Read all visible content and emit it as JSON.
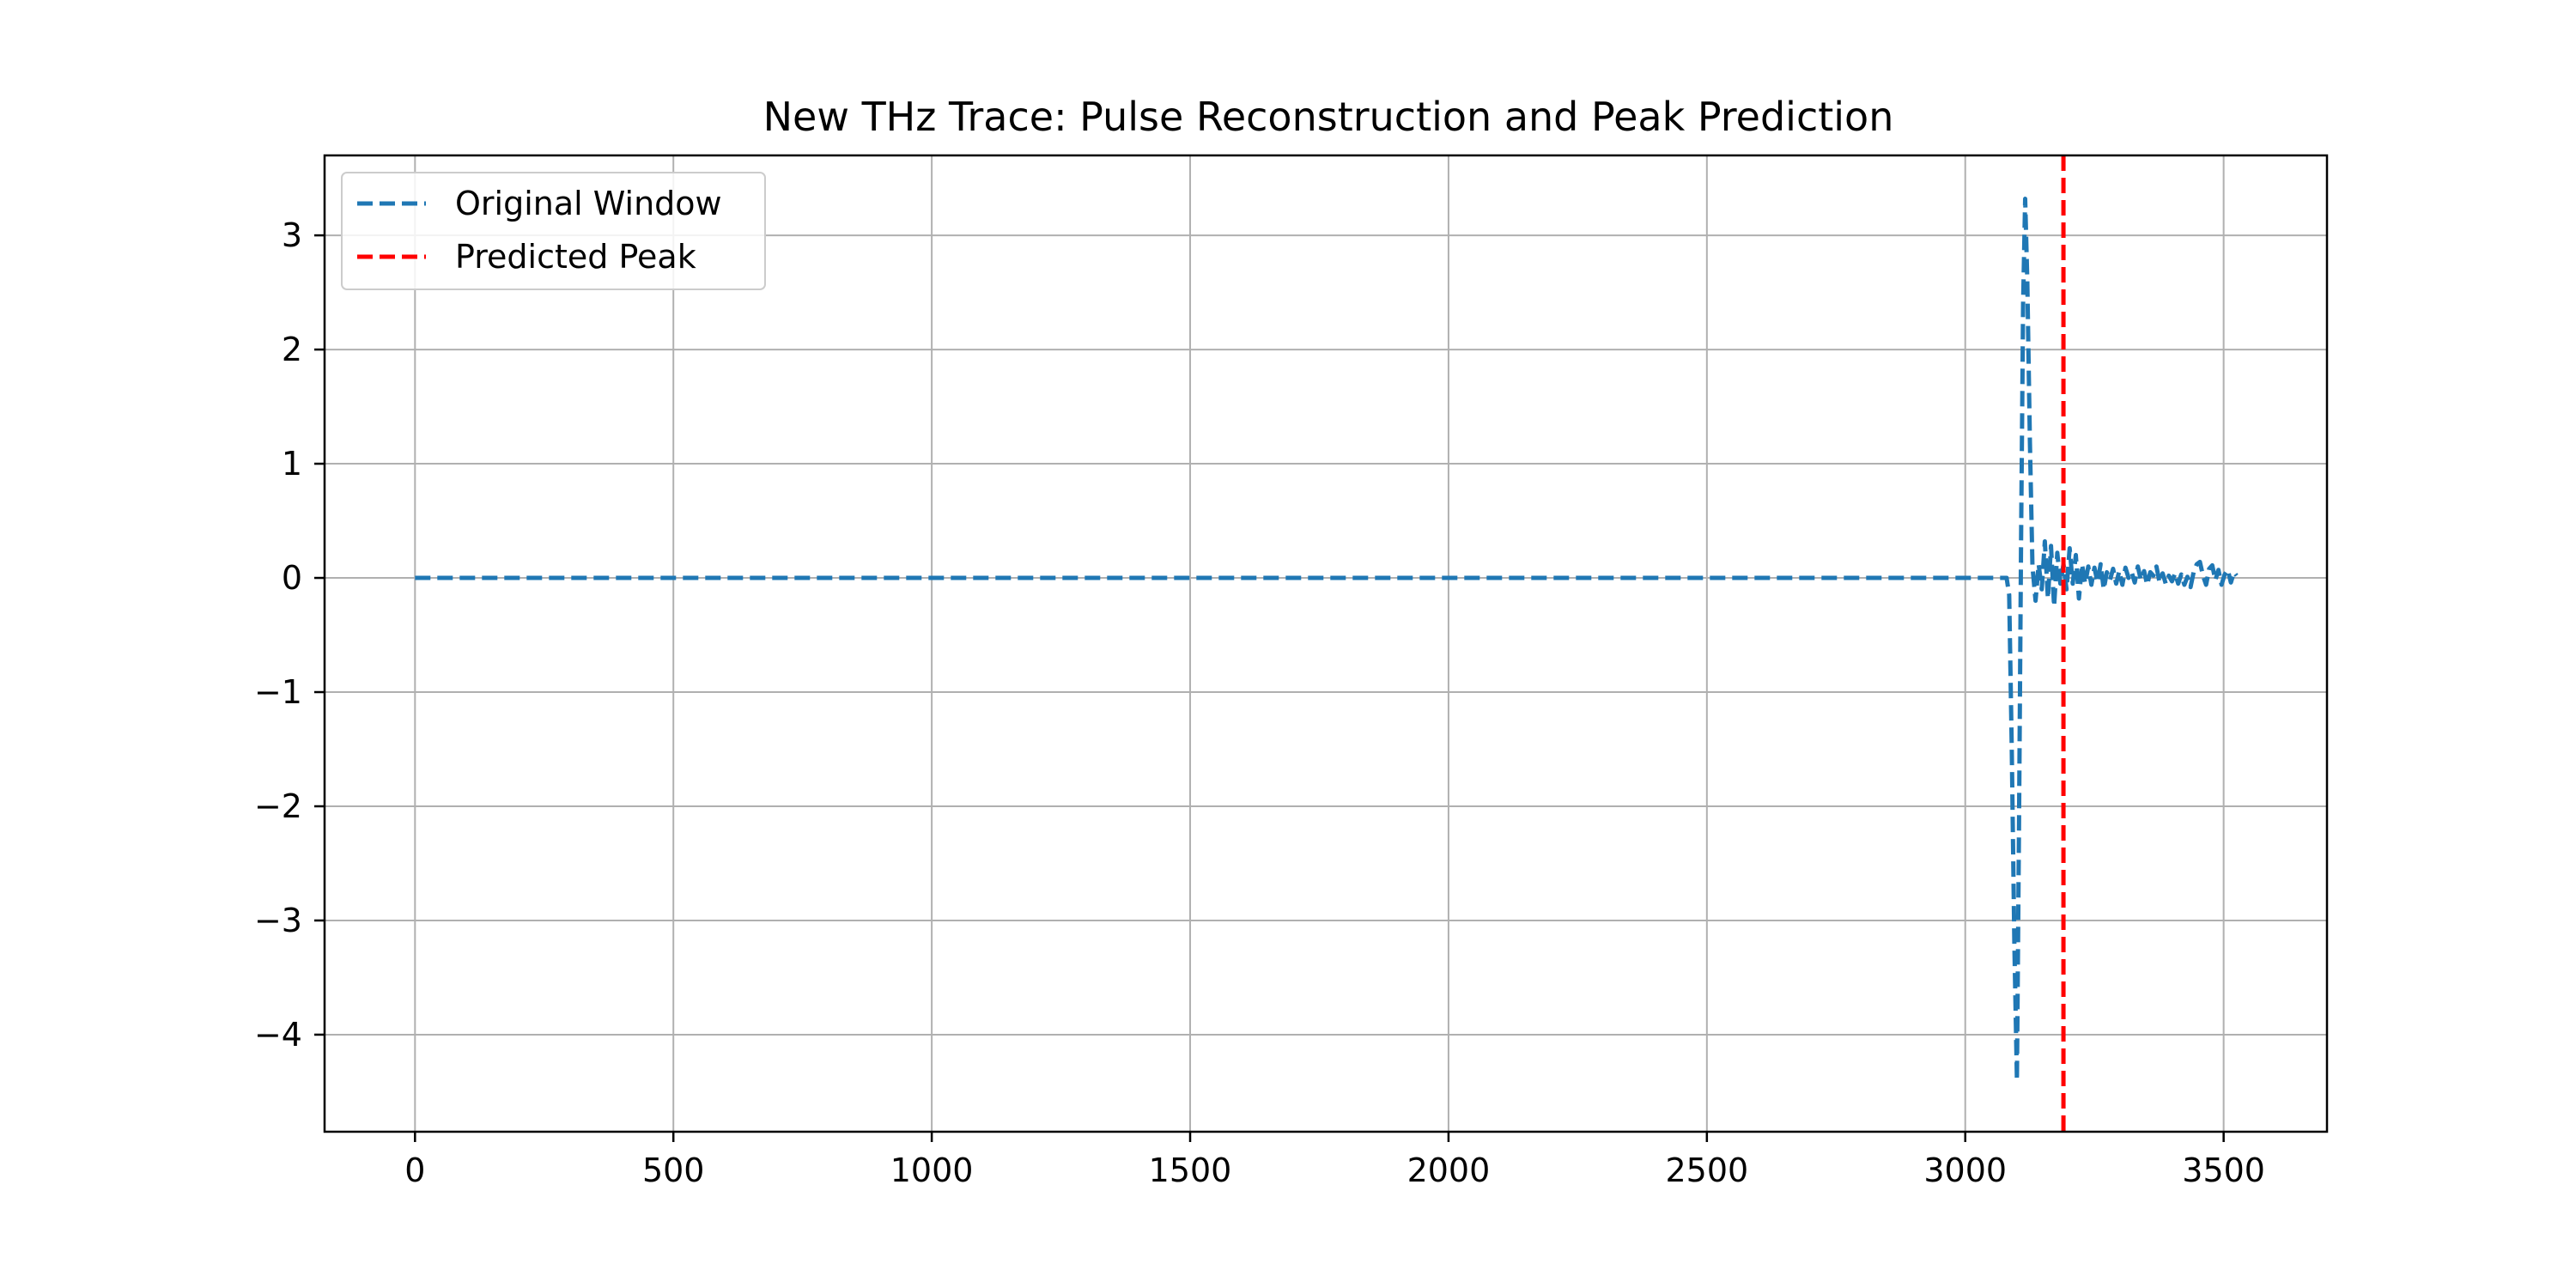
{
  "chart_data": {
    "type": "line",
    "title": "New THz Trace: Pulse Reconstruction and Peak Prediction",
    "xlabel": "",
    "ylabel": "",
    "xlim": [
      -175,
      3700
    ],
    "ylim": [
      -4.85,
      3.7
    ],
    "x_ticks": [
      0,
      500,
      1000,
      1500,
      2000,
      2500,
      3000,
      3500
    ],
    "y_ticks": [
      3,
      2,
      1,
      0,
      -1,
      -2,
      -3,
      -4
    ],
    "x_tick_labels": [
      "0",
      "500",
      "1000",
      "1500",
      "2000",
      "2500",
      "3000",
      "3500"
    ],
    "y_tick_labels": [
      "3",
      "2",
      "1",
      "0",
      "−1",
      "−2",
      "−3",
      "−4"
    ],
    "grid": true,
    "legend_position": "upper-left",
    "series": [
      {
        "name": "Original Window",
        "color": "#1f77b4",
        "style": "dashed",
        "points": [
          [
            0,
            0
          ],
          [
            500,
            0
          ],
          [
            1000,
            0
          ],
          [
            1500,
            0
          ],
          [
            2000,
            0
          ],
          [
            2500,
            0
          ],
          [
            3000,
            0
          ],
          [
            3080,
            0
          ],
          [
            3085,
            -0.15
          ],
          [
            3090,
            -1.5
          ],
          [
            3095,
            -3.2
          ],
          [
            3100,
            -4.4
          ],
          [
            3104,
            -2.2
          ],
          [
            3108,
            0.3
          ],
          [
            3112,
            2.4
          ],
          [
            3116,
            3.32
          ],
          [
            3120,
            2.6
          ],
          [
            3125,
            1.2
          ],
          [
            3130,
            0.1
          ],
          [
            3136,
            -0.2
          ],
          [
            3142,
            0.12
          ],
          [
            3148,
            -0.1
          ],
          [
            3154,
            0.32
          ],
          [
            3160,
            -0.18
          ],
          [
            3166,
            0.28
          ],
          [
            3172,
            -0.25
          ],
          [
            3178,
            0.22
          ],
          [
            3184,
            -0.05
          ],
          [
            3190,
            0.12
          ],
          [
            3196,
            -0.1
          ],
          [
            3202,
            0.26
          ],
          [
            3208,
            -0.05
          ],
          [
            3214,
            0.2
          ],
          [
            3220,
            -0.18
          ],
          [
            3226,
            0.12
          ],
          [
            3232,
            -0.05
          ],
          [
            3238,
            0.1
          ],
          [
            3244,
            -0.06
          ],
          [
            3250,
            0.09
          ],
          [
            3256,
            -0.04
          ],
          [
            3262,
            0.12
          ],
          [
            3268,
            -0.1
          ],
          [
            3274,
            0.05
          ],
          [
            3280,
            -0.02
          ],
          [
            3286,
            0.08
          ],
          [
            3292,
            -0.05
          ],
          [
            3298,
            0.06
          ],
          [
            3304,
            -0.06
          ],
          [
            3310,
            0.09
          ],
          [
            3316,
            0.0
          ],
          [
            3322,
            0.05
          ],
          [
            3328,
            -0.04
          ],
          [
            3334,
            0.1
          ],
          [
            3340,
            -0.02
          ],
          [
            3346,
            0.06
          ],
          [
            3352,
            -0.06
          ],
          [
            3358,
            0.05
          ],
          [
            3364,
            0.02
          ],
          [
            3370,
            0.1
          ],
          [
            3376,
            -0.04
          ],
          [
            3382,
            0.04
          ],
          [
            3388,
            -0.05
          ],
          [
            3394,
            0.02
          ],
          [
            3400,
            -0.03
          ],
          [
            3406,
            0.04
          ],
          [
            3412,
            -0.05
          ],
          [
            3418,
            0.03
          ],
          [
            3424,
            -0.06
          ],
          [
            3430,
            0.01
          ],
          [
            3436,
            -0.08
          ],
          [
            3442,
            0.05
          ],
          [
            3448,
            0.12
          ],
          [
            3454,
            0.14
          ],
          [
            3460,
            0.02
          ],
          [
            3466,
            -0.06
          ],
          [
            3472,
            0.08
          ],
          [
            3478,
            0.11
          ],
          [
            3484,
            -0.02
          ],
          [
            3490,
            0.07
          ],
          [
            3496,
            -0.06
          ],
          [
            3502,
            0.03
          ],
          [
            3508,
            0.07
          ],
          [
            3514,
            -0.04
          ],
          [
            3520,
            0.05
          ],
          [
            3525,
            0.02
          ]
        ]
      },
      {
        "name": "Predicted Peak",
        "color": "#ff0000",
        "style": "dashed",
        "vertical_x": 3190
      }
    ]
  }
}
